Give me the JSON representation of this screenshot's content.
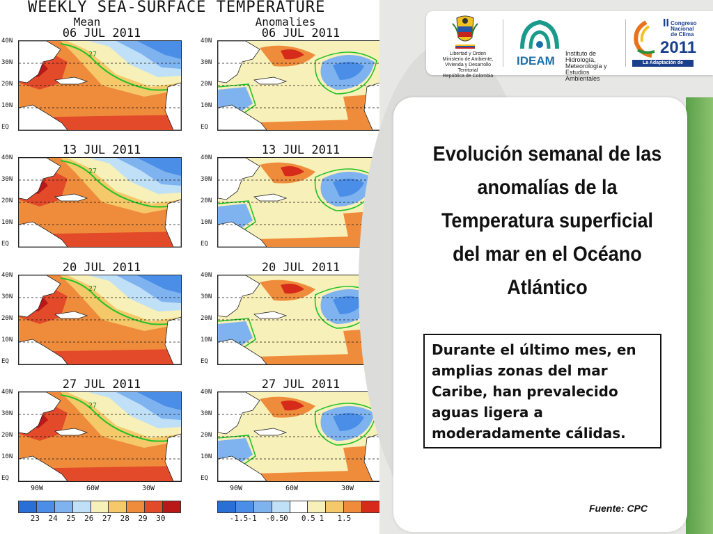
{
  "figure": {
    "title": "WEEKLY SEA-SURFACE TEMPERATURE",
    "mean_header": "Mean",
    "anom_header": "Anomalies",
    "weeks": [
      "06 JUL 2011",
      "13 JUL 2011",
      "20 JUL 2011",
      "27 JUL 2011"
    ],
    "lat_labels": [
      "40N",
      "30N",
      "20N",
      "10N",
      "EQ"
    ],
    "lon_labels": [
      "90W",
      "60W",
      "30W"
    ],
    "contour_label": "27",
    "mean_colorbar": {
      "labels": [
        "23",
        "24",
        "25",
        "26",
        "27",
        "28",
        "29",
        "30"
      ],
      "colors": [
        "#2a6fd6",
        "#4a8ee8",
        "#7fb3f0",
        "#bfe0f7",
        "#f7f0b8",
        "#f5c96a",
        "#ef8c3c",
        "#e24a2a",
        "#b81818"
      ]
    },
    "anom_colorbar": {
      "labels": [
        "-1.5",
        "-1",
        "-0.5",
        "0",
        "0.5",
        "1",
        "1.5"
      ],
      "colors": [
        "#2a6fd6",
        "#4a8ee8",
        "#7fb3f0",
        "#bfe0f7",
        "#ffffff",
        "#f7f0b8",
        "#f5c96a",
        "#ef8c3c",
        "#d62a1a"
      ]
    }
  },
  "logos": {
    "gov_caption": "Libertad y Orden\nMinisterio de Ambiente, Vivienda y Desarrollo Territorial\nRepública de Colombia",
    "ideam_name": "IDEAM",
    "ideam_sub": "Instituto de Hidrología, Meteorología y Estudios Ambientales",
    "congress_roman": "II",
    "congress_title": "Congreso Nacional de Clima",
    "congress_year": "2011",
    "congress_tagline": "La Adaptación de Colombia"
  },
  "slide": {
    "headline": "Evolución semanal de las anomalías de la Temperatura superficial del mar en el Océano Atlántico",
    "note": "Durante el último mes, en amplias zonas del mar Caribe, han prevalecido aguas ligera a moderadamente cálidas.",
    "source": "Fuente: CPC"
  }
}
